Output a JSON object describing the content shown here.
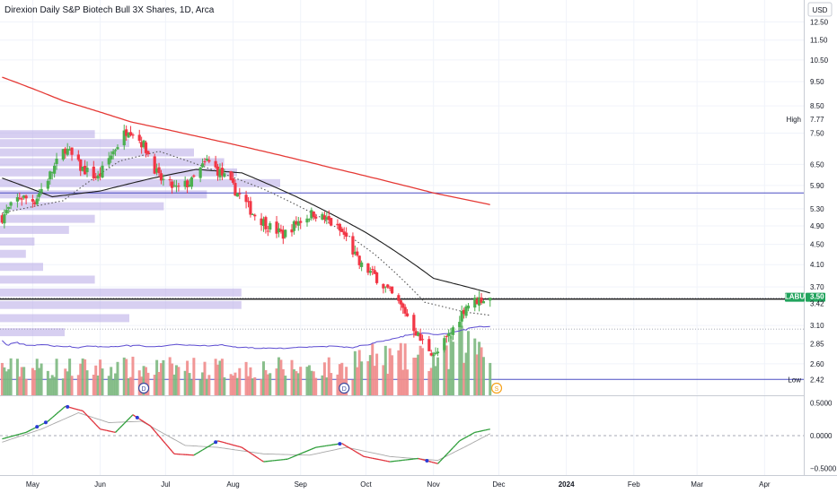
{
  "header": {
    "title": "Direxion Daily S&P Biotech Bull 3X Shares, 1D, Arca",
    "currency": "USD"
  },
  "colors": {
    "up": "#4caf50",
    "down": "#f23645",
    "ma_200": "#e53935",
    "ma_50": "#1e1e1e",
    "ma_20": "#555555",
    "ma_fast": "#7b1fa2",
    "volume_ma": "#5c4bd1",
    "volume_up": "#7cb87f",
    "volume_down": "#f08b8b",
    "profile": "#b7a8e6",
    "osc_up": "#2e9e3a",
    "osc_down": "#e0303a",
    "osc_signal": "#a8a8a8",
    "osc_dot": "#2a3bd6",
    "hline": "#4c4fc4",
    "badge": "#22a45d",
    "dividend": "#3b4a9e",
    "split": "#f7a21b"
  },
  "chart_data": [
    {
      "type": "candlestick",
      "title": "Direxion Daily S&P Biotech Bull 3X Shares, 1D, Arca",
      "y_scale": "log",
      "ylim": [
        2.25,
        13.6
      ],
      "y_ticks": [
        12.5,
        11.5,
        10.5,
        9.5,
        8.5,
        7.5,
        6.5,
        5.9,
        5.3,
        4.9,
        4.5,
        4.1,
        3.7,
        3.1,
        2.85,
        2.6
      ],
      "y_tick_labels": [
        "12.50",
        "11.50",
        "10.50",
        "9.50",
        "8.50",
        "7.50",
        "6.50",
        "5.90",
        "5.30",
        "4.90",
        "4.50",
        "4.10",
        "3.70",
        "3.10",
        "2.85",
        "2.60"
      ],
      "x_labels": [
        "May",
        "Jun",
        "Jul",
        "Aug",
        "Sep",
        "Oct",
        "Nov",
        "Dec",
        "2024",
        "Feb",
        "Mar",
        "Apr"
      ],
      "x_label_dates": [
        "2023-05-01",
        "2023-06-01",
        "2023-07-01",
        "2023-08-01",
        "2023-09-01",
        "2023-10-01",
        "2023-11-01",
        "2023-12-01",
        "2024-01-01",
        "2024-02-01",
        "2024-03-01",
        "2024-04-01"
      ],
      "close_keypoints": [
        {
          "date": "2023-04-17",
          "close": 5.1
        },
        {
          "date": "2023-04-25",
          "close": 5.6
        },
        {
          "date": "2023-05-02",
          "close": 5.5
        },
        {
          "date": "2023-05-10",
          "close": 6.3
        },
        {
          "date": "2023-05-16",
          "close": 7.0
        },
        {
          "date": "2023-05-23",
          "close": 6.4
        },
        {
          "date": "2023-05-31",
          "close": 6.1
        },
        {
          "date": "2023-06-07",
          "close": 6.9
        },
        {
          "date": "2023-06-14",
          "close": 7.7
        },
        {
          "date": "2023-06-21",
          "close": 7.1
        },
        {
          "date": "2023-06-28",
          "close": 6.1
        },
        {
          "date": "2023-07-06",
          "close": 5.8
        },
        {
          "date": "2023-07-13",
          "close": 6.0
        },
        {
          "date": "2023-07-20",
          "close": 6.6
        },
        {
          "date": "2023-07-27",
          "close": 6.2
        },
        {
          "date": "2023-08-03",
          "close": 5.7
        },
        {
          "date": "2023-08-10",
          "close": 5.2
        },
        {
          "date": "2023-08-17",
          "close": 4.9
        },
        {
          "date": "2023-08-24",
          "close": 4.7
        },
        {
          "date": "2023-08-31",
          "close": 5.0
        },
        {
          "date": "2023-09-07",
          "close": 5.2
        },
        {
          "date": "2023-09-14",
          "close": 5.0
        },
        {
          "date": "2023-09-21",
          "close": 4.7
        },
        {
          "date": "2023-09-28",
          "close": 4.1
        },
        {
          "date": "2023-10-05",
          "close": 3.9
        },
        {
          "date": "2023-10-12",
          "close": 3.6
        },
        {
          "date": "2023-10-19",
          "close": 3.3
        },
        {
          "date": "2023-10-26",
          "close": 2.9
        },
        {
          "date": "2023-11-02",
          "close": 2.7
        },
        {
          "date": "2023-11-09",
          "close": 3.0
        },
        {
          "date": "2023-11-16",
          "close": 3.4
        },
        {
          "date": "2023-11-22",
          "close": 3.5
        },
        {
          "date": "2023-11-27",
          "close": 3.5
        }
      ],
      "moving_averages": [
        {
          "name": "",
          "color_key": "ma_200",
          "style": "solid",
          "points": [
            {
              "date": "2023-04-17",
              "value": 9.7
            },
            {
              "date": "2023-05-15",
              "value": 8.7
            },
            {
              "date": "2023-06-15",
              "value": 7.9
            },
            {
              "date": "2023-07-15",
              "value": 7.4
            },
            {
              "date": "2023-08-15",
              "value": 6.9
            },
            {
              "date": "2023-09-15",
              "value": 6.4
            },
            {
              "date": "2023-10-15",
              "value": 5.95
            },
            {
              "date": "2023-11-01",
              "value": 5.7
            },
            {
              "date": "2023-11-27",
              "value": 5.4
            }
          ]
        },
        {
          "name": "",
          "color_key": "ma_50",
          "style": "solid",
          "points": [
            {
              "date": "2023-04-17",
              "value": 6.1
            },
            {
              "date": "2023-05-10",
              "value": 5.6
            },
            {
              "date": "2023-06-01",
              "value": 5.75
            },
            {
              "date": "2023-06-25",
              "value": 6.1
            },
            {
              "date": "2023-07-15",
              "value": 6.35
            },
            {
              "date": "2023-08-05",
              "value": 6.25
            },
            {
              "date": "2023-09-01",
              "value": 5.55
            },
            {
              "date": "2023-10-01",
              "value": 4.75
            },
            {
              "date": "2023-11-01",
              "value": 3.85
            },
            {
              "date": "2023-11-27",
              "value": 3.6
            }
          ]
        },
        {
          "name": "",
          "color_key": "ma_20",
          "style": "dotted",
          "points": [
            {
              "date": "2023-04-17",
              "value": 5.2
            },
            {
              "date": "2023-05-15",
              "value": 5.5
            },
            {
              "date": "2023-06-10",
              "value": 6.6
            },
            {
              "date": "2023-06-28",
              "value": 6.9
            },
            {
              "date": "2023-07-20",
              "value": 6.4
            },
            {
              "date": "2023-08-15",
              "value": 5.8
            },
            {
              "date": "2023-09-10",
              "value": 5.1
            },
            {
              "date": "2023-10-05",
              "value": 4.3
            },
            {
              "date": "2023-10-28",
              "value": 3.45
            },
            {
              "date": "2023-11-15",
              "value": 3.3
            },
            {
              "date": "2023-11-27",
              "value": 3.25
            }
          ]
        }
      ],
      "horizontal_lines": [
        {
          "value": 5.7,
          "color_key": "hline"
        },
        {
          "value": 3.5,
          "color_key": "ma_50"
        },
        {
          "value": 2.42,
          "color_key": "hline"
        }
      ],
      "high": {
        "label": "High",
        "value": "7.77",
        "y": 7.77
      },
      "low": {
        "label": "Low",
        "value": "2.42",
        "y": 2.42
      },
      "last_price": {
        "symbol": "LABU",
        "value": "3.50",
        "y": 3.5,
        "secondary": "3.42"
      },
      "events": [
        {
          "date": "2023-06-21",
          "kind": "dividend",
          "label": "D"
        },
        {
          "date": "2023-09-21",
          "kind": "dividend",
          "label": "D"
        },
        {
          "date": "2023-11-30",
          "kind": "split",
          "label": "S"
        }
      ],
      "volume_profile_rows": [
        {
          "price": 7.45,
          "volume": 0.22
        },
        {
          "price": 7.15,
          "volume": 0.3
        },
        {
          "price": 6.85,
          "volume": 0.45
        },
        {
          "price": 6.55,
          "volume": 0.52
        },
        {
          "price": 6.25,
          "volume": 0.55
        },
        {
          "price": 5.95,
          "volume": 0.65
        },
        {
          "price": 5.65,
          "volume": 0.48
        },
        {
          "price": 5.35,
          "volume": 0.38
        },
        {
          "price": 5.05,
          "volume": 0.22
        },
        {
          "price": 4.8,
          "volume": 0.16
        },
        {
          "price": 4.55,
          "volume": 0.08
        },
        {
          "price": 4.3,
          "volume": 0.06
        },
        {
          "price": 4.05,
          "volume": 0.1
        },
        {
          "price": 3.82,
          "volume": 0.22
        },
        {
          "price": 3.6,
          "volume": 0.56
        },
        {
          "price": 3.4,
          "volume": 0.56
        },
        {
          "price": 3.2,
          "volume": 0.3
        },
        {
          "price": 3.0,
          "volume": 0.15
        }
      ]
    },
    {
      "type": "line",
      "title": "",
      "ylim": [
        -0.55,
        0.55
      ],
      "y_ticks": [
        0.5,
        0.0,
        -0.5
      ],
      "y_tick_labels": [
        "0.5000",
        "0.0000",
        "−0.5000"
      ],
      "zero_line": 0,
      "osc_keypoints": [
        {
          "date": "2023-04-17",
          "value": -0.05
        },
        {
          "date": "2023-04-28",
          "value": 0.05
        },
        {
          "date": "2023-05-08",
          "value": 0.22
        },
        {
          "date": "2023-05-16",
          "value": 0.45
        },
        {
          "date": "2023-05-24",
          "value": 0.38
        },
        {
          "date": "2023-06-01",
          "value": 0.1
        },
        {
          "date": "2023-06-08",
          "value": 0.05
        },
        {
          "date": "2023-06-16",
          "value": 0.32
        },
        {
          "date": "2023-06-24",
          "value": 0.15
        },
        {
          "date": "2023-07-05",
          "value": -0.28
        },
        {
          "date": "2023-07-14",
          "value": -0.3
        },
        {
          "date": "2023-07-25",
          "value": -0.08
        },
        {
          "date": "2023-08-05",
          "value": -0.18
        },
        {
          "date": "2023-08-15",
          "value": -0.4
        },
        {
          "date": "2023-08-26",
          "value": -0.36
        },
        {
          "date": "2023-09-08",
          "value": -0.18
        },
        {
          "date": "2023-09-20",
          "value": -0.12
        },
        {
          "date": "2023-09-30",
          "value": -0.32
        },
        {
          "date": "2023-10-12",
          "value": -0.4
        },
        {
          "date": "2023-10-25",
          "value": -0.35
        },
        {
          "date": "2023-11-03",
          "value": -0.43
        },
        {
          "date": "2023-11-13",
          "value": -0.08
        },
        {
          "date": "2023-11-20",
          "value": 0.05
        },
        {
          "date": "2023-11-27",
          "value": 0.1
        }
      ],
      "signal_keypoints": [
        {
          "date": "2023-04-17",
          "value": -0.1
        },
        {
          "date": "2023-05-05",
          "value": 0.1
        },
        {
          "date": "2023-05-22",
          "value": 0.35
        },
        {
          "date": "2023-06-05",
          "value": 0.2
        },
        {
          "date": "2023-06-20",
          "value": 0.22
        },
        {
          "date": "2023-07-10",
          "value": -0.15
        },
        {
          "date": "2023-07-25",
          "value": -0.18
        },
        {
          "date": "2023-08-15",
          "value": -0.28
        },
        {
          "date": "2023-09-05",
          "value": -0.3
        },
        {
          "date": "2023-09-22",
          "value": -0.18
        },
        {
          "date": "2023-10-12",
          "value": -0.32
        },
        {
          "date": "2023-11-03",
          "value": -0.38
        },
        {
          "date": "2023-11-15",
          "value": -0.18
        },
        {
          "date": "2023-11-27",
          "value": 0.03
        }
      ],
      "dot_dates": [
        "2023-05-03",
        "2023-05-07",
        "2023-05-17",
        "2023-06-18",
        "2023-07-24",
        "2023-09-19",
        "2023-10-29"
      ]
    }
  ]
}
